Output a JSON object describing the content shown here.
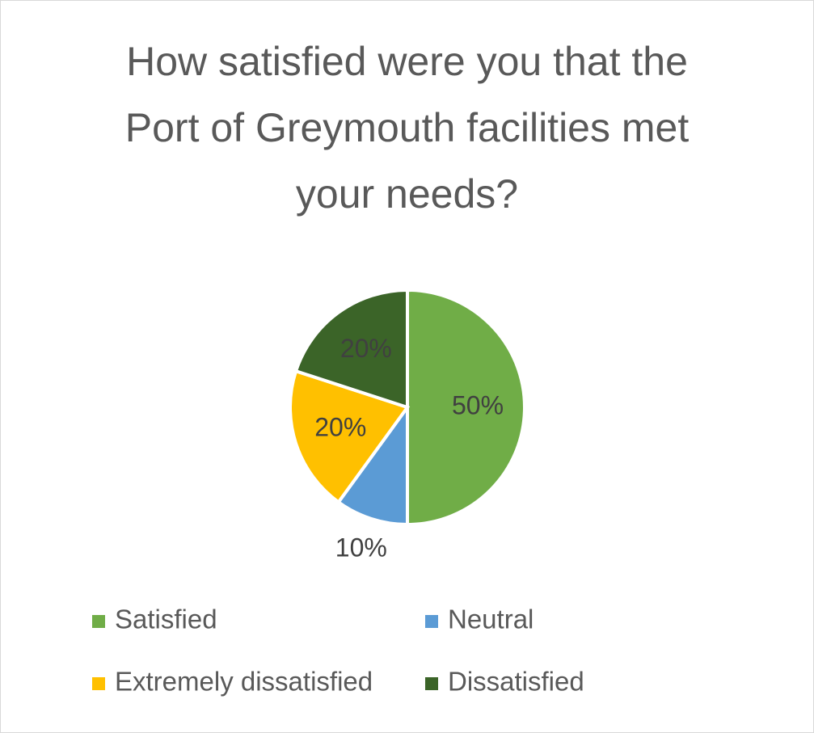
{
  "chart_data": {
    "type": "pie",
    "title": "How satisfied were you that the Port of Greymouth facilities met your needs?",
    "categories": [
      "Satisfied",
      "Neutral",
      "Extremely dissatisfied",
      "Dissatisfied"
    ],
    "values": [
      50,
      10,
      20,
      20
    ],
    "value_labels": [
      "50%",
      "10%",
      "20%",
      "20%"
    ],
    "colors": [
      "#70ad47",
      "#5b9bd5",
      "#ffc000",
      "#3b6428"
    ]
  }
}
